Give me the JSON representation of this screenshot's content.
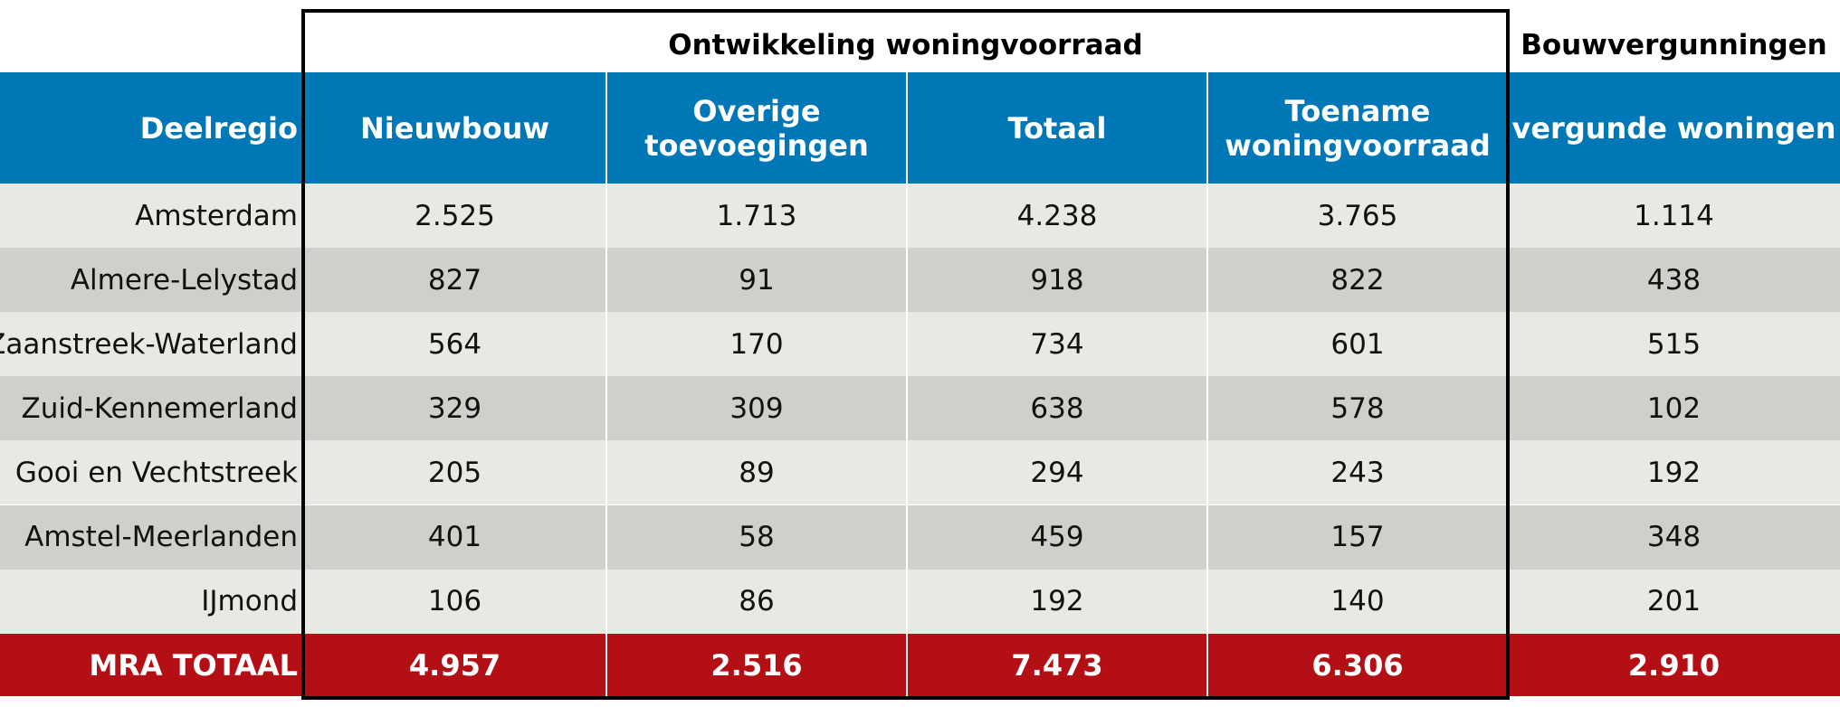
{
  "chart_data": {
    "type": "table",
    "super_headers": {
      "left": "Ontwikkeling woningvoorraad",
      "right": "Bouwvergunningen"
    },
    "columns": [
      "Deelregio",
      "Nieuwbouw",
      "Overige\ntoevoegingen",
      "Totaal",
      "Toename\nwoningvoorraad",
      "vergunde woningen"
    ],
    "rows": [
      [
        "Amsterdam",
        "2.525",
        "1.713",
        "4.238",
        "3.765",
        "1.114"
      ],
      [
        "Almere-Lelystad",
        "827",
        "91",
        "918",
        "822",
        "438"
      ],
      [
        "Zaanstreek-Waterland",
        "564",
        "170",
        "734",
        "601",
        "515"
      ],
      [
        "Zuid-Kennemerland",
        "329",
        "309",
        "638",
        "578",
        "102"
      ],
      [
        "Gooi en Vechtstreek",
        "205",
        "89",
        "294",
        "243",
        "192"
      ],
      [
        "Amstel-Meerlanden",
        "401",
        "58",
        "459",
        "157",
        "348"
      ],
      [
        "IJmond",
        "106",
        "86",
        "192",
        "140",
        "201"
      ]
    ],
    "total_row": [
      "MRA TOTAAL",
      "4.957",
      "2.516",
      "7.473",
      "6.306",
      "2.910"
    ]
  },
  "colors": {
    "header_bg": "#0077b6",
    "total_bg": "#b30f14",
    "row_light": "#e9e8e2",
    "row_dark": "#d0cfca",
    "frame": "#000000"
  }
}
